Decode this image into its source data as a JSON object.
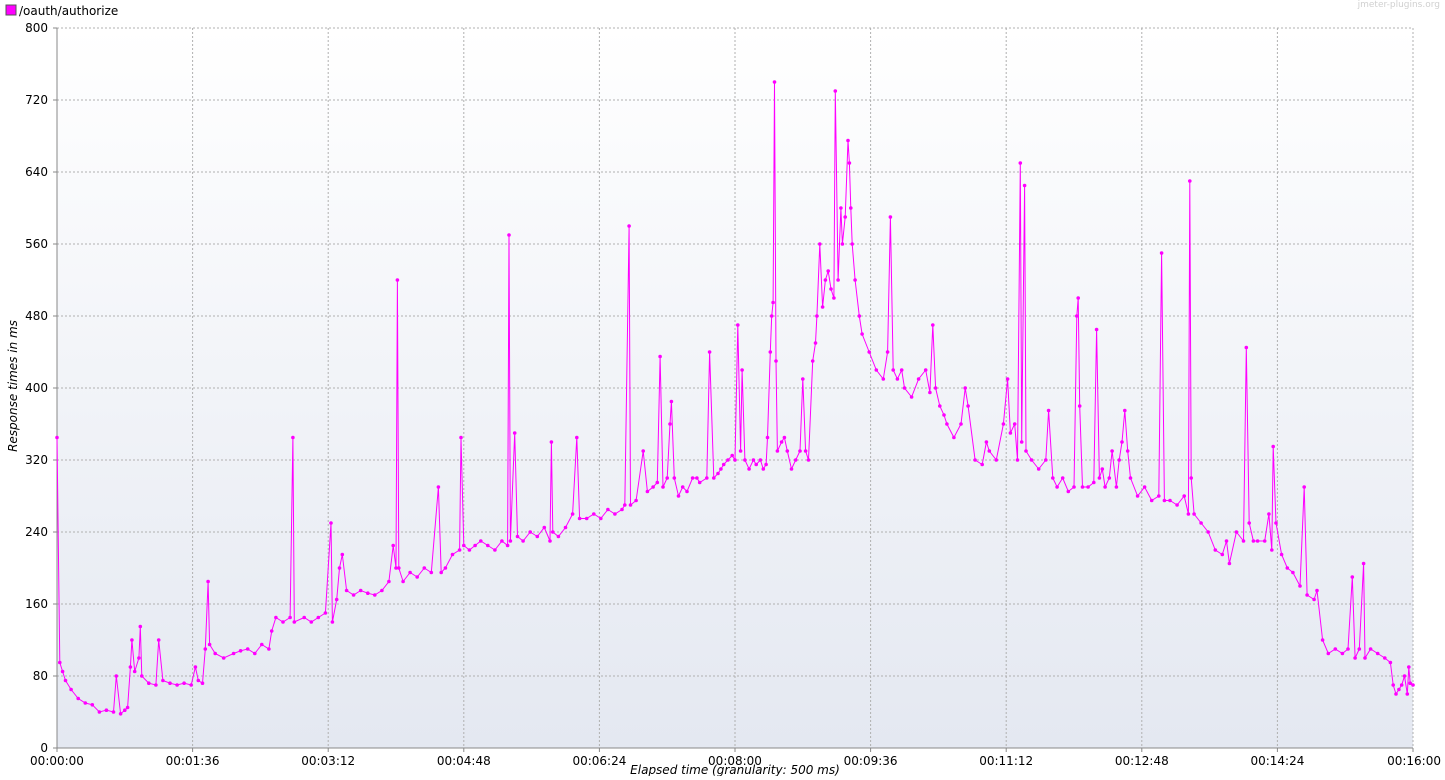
{
  "watermark": "jmeter-plugins.org",
  "chart_data": {
    "type": "line",
    "title": "",
    "xlabel": "Elapsed time (granularity: 500 ms)",
    "ylabel": "Response times in ms",
    "legend_placement": "top-left",
    "grid": true,
    "series_color": "#ff00ff",
    "xlim_seconds": [
      0,
      960
    ],
    "ylim": [
      0,
      800
    ],
    "x_ticks": [
      "00:00:00",
      "00:01:36",
      "00:03:12",
      "00:04:48",
      "00:06:24",
      "00:08:00",
      "00:09:36",
      "00:11:12",
      "00:12:48",
      "00:14:24",
      "00:16:00"
    ],
    "y_ticks": [
      0,
      80,
      160,
      240,
      320,
      400,
      480,
      560,
      640,
      720,
      800
    ],
    "series": [
      {
        "name": "/oauth/authorize",
        "x_unit": "elapsed seconds",
        "points": [
          [
            0,
            345
          ],
          [
            2,
            95
          ],
          [
            4,
            85
          ],
          [
            6,
            75
          ],
          [
            10,
            65
          ],
          [
            15,
            55
          ],
          [
            20,
            50
          ],
          [
            25,
            48
          ],
          [
            30,
            40
          ],
          [
            35,
            42
          ],
          [
            40,
            40
          ],
          [
            42,
            80
          ],
          [
            45,
            38
          ],
          [
            48,
            42
          ],
          [
            50,
            45
          ],
          [
            52,
            90
          ],
          [
            53,
            120
          ],
          [
            55,
            85
          ],
          [
            58,
            100
          ],
          [
            59,
            135
          ],
          [
            60,
            80
          ],
          [
            65,
            72
          ],
          [
            70,
            70
          ],
          [
            72,
            120
          ],
          [
            75,
            75
          ],
          [
            80,
            72
          ],
          [
            85,
            70
          ],
          [
            90,
            72
          ],
          [
            95,
            70
          ],
          [
            98,
            90
          ],
          [
            100,
            75
          ],
          [
            103,
            72
          ],
          [
            105,
            110
          ],
          [
            107,
            185
          ],
          [
            108,
            115
          ],
          [
            112,
            105
          ],
          [
            118,
            100
          ],
          [
            125,
            105
          ],
          [
            130,
            108
          ],
          [
            135,
            110
          ],
          [
            140,
            105
          ],
          [
            145,
            115
          ],
          [
            150,
            110
          ],
          [
            152,
            130
          ],
          [
            155,
            145
          ],
          [
            160,
            140
          ],
          [
            165,
            145
          ],
          [
            167,
            345
          ],
          [
            168,
            140
          ],
          [
            175,
            145
          ],
          [
            180,
            140
          ],
          [
            185,
            145
          ],
          [
            190,
            150
          ],
          [
            194,
            250
          ],
          [
            195,
            140
          ],
          [
            198,
            165
          ],
          [
            200,
            200
          ],
          [
            202,
            215
          ],
          [
            205,
            175
          ],
          [
            210,
            170
          ],
          [
            215,
            175
          ],
          [
            220,
            172
          ],
          [
            225,
            170
          ],
          [
            230,
            175
          ],
          [
            235,
            185
          ],
          [
            238,
            225
          ],
          [
            240,
            200
          ],
          [
            241,
            520
          ],
          [
            242,
            200
          ],
          [
            245,
            185
          ],
          [
            250,
            195
          ],
          [
            255,
            190
          ],
          [
            260,
            200
          ],
          [
            265,
            195
          ],
          [
            270,
            290
          ],
          [
            272,
            195
          ],
          [
            275,
            200
          ],
          [
            280,
            215
          ],
          [
            285,
            220
          ],
          [
            286,
            345
          ],
          [
            288,
            225
          ],
          [
            292,
            220
          ],
          [
            296,
            225
          ],
          [
            300,
            230
          ],
          [
            305,
            225
          ],
          [
            310,
            220
          ],
          [
            315,
            230
          ],
          [
            319,
            225
          ],
          [
            320,
            570
          ],
          [
            321,
            230
          ],
          [
            324,
            350
          ],
          [
            326,
            235
          ],
          [
            330,
            230
          ],
          [
            335,
            240
          ],
          [
            340,
            235
          ],
          [
            345,
            245
          ],
          [
            349,
            230
          ],
          [
            350,
            340
          ],
          [
            351,
            240
          ],
          [
            355,
            235
          ],
          [
            360,
            245
          ],
          [
            365,
            260
          ],
          [
            368,
            345
          ],
          [
            370,
            255
          ],
          [
            375,
            255
          ],
          [
            380,
            260
          ],
          [
            385,
            255
          ],
          [
            390,
            265
          ],
          [
            395,
            260
          ],
          [
            400,
            265
          ],
          [
            402,
            270
          ],
          [
            405,
            580
          ],
          [
            406,
            270
          ],
          [
            410,
            275
          ],
          [
            415,
            330
          ],
          [
            418,
            285
          ],
          [
            422,
            290
          ],
          [
            425,
            295
          ],
          [
            427,
            435
          ],
          [
            429,
            290
          ],
          [
            432,
            300
          ],
          [
            434,
            360
          ],
          [
            435,
            385
          ],
          [
            437,
            300
          ],
          [
            440,
            280
          ],
          [
            443,
            290
          ],
          [
            446,
            285
          ],
          [
            450,
            300
          ],
          [
            453,
            300
          ],
          [
            455,
            295
          ],
          [
            460,
            300
          ],
          [
            462,
            440
          ],
          [
            465,
            300
          ],
          [
            468,
            305
          ],
          [
            470,
            310
          ],
          [
            472,
            315
          ],
          [
            475,
            320
          ],
          [
            478,
            325
          ],
          [
            480,
            320
          ],
          [
            482,
            470
          ],
          [
            484,
            330
          ],
          [
            485,
            420
          ],
          [
            487,
            320
          ],
          [
            490,
            310
          ],
          [
            493,
            320
          ],
          [
            495,
            315
          ],
          [
            498,
            320
          ],
          [
            500,
            310
          ],
          [
            502,
            315
          ],
          [
            503,
            345
          ],
          [
            505,
            440
          ],
          [
            506,
            480
          ],
          [
            507,
            495
          ],
          [
            508,
            740
          ],
          [
            509,
            430
          ],
          [
            510,
            330
          ],
          [
            513,
            340
          ],
          [
            515,
            345
          ],
          [
            517,
            330
          ],
          [
            520,
            310
          ],
          [
            523,
            320
          ],
          [
            526,
            330
          ],
          [
            528,
            410
          ],
          [
            530,
            330
          ],
          [
            532,
            320
          ],
          [
            535,
            430
          ],
          [
            537,
            450
          ],
          [
            538,
            480
          ],
          [
            540,
            560
          ],
          [
            542,
            490
          ],
          [
            544,
            520
          ],
          [
            546,
            530
          ],
          [
            548,
            510
          ],
          [
            550,
            500
          ],
          [
            551,
            730
          ],
          [
            553,
            520
          ],
          [
            555,
            600
          ],
          [
            556,
            560
          ],
          [
            558,
            590
          ],
          [
            560,
            675
          ],
          [
            561,
            650
          ],
          [
            562,
            600
          ],
          [
            563,
            560
          ],
          [
            565,
            520
          ],
          [
            568,
            480
          ],
          [
            570,
            460
          ],
          [
            575,
            440
          ],
          [
            580,
            420
          ],
          [
            585,
            410
          ],
          [
            588,
            440
          ],
          [
            590,
            590
          ],
          [
            592,
            420
          ],
          [
            595,
            410
          ],
          [
            598,
            420
          ],
          [
            600,
            400
          ],
          [
            605,
            390
          ],
          [
            610,
            410
          ],
          [
            615,
            420
          ],
          [
            618,
            395
          ],
          [
            620,
            470
          ],
          [
            622,
            400
          ],
          [
            625,
            380
          ],
          [
            628,
            370
          ],
          [
            630,
            360
          ],
          [
            635,
            345
          ],
          [
            640,
            360
          ],
          [
            643,
            400
          ],
          [
            645,
            380
          ],
          [
            650,
            320
          ],
          [
            655,
            315
          ],
          [
            658,
            340
          ],
          [
            660,
            330
          ],
          [
            665,
            320
          ],
          [
            670,
            360
          ],
          [
            673,
            410
          ],
          [
            675,
            350
          ],
          [
            678,
            360
          ],
          [
            680,
            320
          ],
          [
            682,
            650
          ],
          [
            683,
            340
          ],
          [
            685,
            625
          ],
          [
            686,
            330
          ],
          [
            690,
            320
          ],
          [
            695,
            310
          ],
          [
            700,
            320
          ],
          [
            702,
            375
          ],
          [
            705,
            300
          ],
          [
            708,
            290
          ],
          [
            712,
            300
          ],
          [
            716,
            285
          ],
          [
            720,
            290
          ],
          [
            722,
            480
          ],
          [
            723,
            500
          ],
          [
            724,
            380
          ],
          [
            726,
            290
          ],
          [
            730,
            290
          ],
          [
            734,
            295
          ],
          [
            736,
            465
          ],
          [
            738,
            300
          ],
          [
            740,
            310
          ],
          [
            742,
            290
          ],
          [
            745,
            300
          ],
          [
            747,
            330
          ],
          [
            750,
            290
          ],
          [
            752,
            320
          ],
          [
            754,
            340
          ],
          [
            756,
            375
          ],
          [
            758,
            330
          ],
          [
            760,
            300
          ],
          [
            765,
            280
          ],
          [
            770,
            290
          ],
          [
            775,
            275
          ],
          [
            780,
            280
          ],
          [
            782,
            550
          ],
          [
            784,
            275
          ],
          [
            788,
            275
          ],
          [
            793,
            270
          ],
          [
            798,
            280
          ],
          [
            801,
            260
          ],
          [
            802,
            630
          ],
          [
            803,
            300
          ],
          [
            805,
            260
          ],
          [
            810,
            250
          ],
          [
            815,
            240
          ],
          [
            820,
            220
          ],
          [
            825,
            215
          ],
          [
            828,
            230
          ],
          [
            830,
            205
          ],
          [
            835,
            240
          ],
          [
            840,
            230
          ],
          [
            842,
            445
          ],
          [
            844,
            250
          ],
          [
            847,
            230
          ],
          [
            850,
            230
          ],
          [
            855,
            230
          ],
          [
            858,
            260
          ],
          [
            860,
            220
          ],
          [
            861,
            335
          ],
          [
            863,
            250
          ],
          [
            867,
            215
          ],
          [
            871,
            200
          ],
          [
            875,
            195
          ],
          [
            880,
            180
          ],
          [
            883,
            290
          ],
          [
            885,
            170
          ],
          [
            890,
            165
          ],
          [
            892,
            175
          ],
          [
            896,
            120
          ],
          [
            900,
            105
          ],
          [
            905,
            110
          ],
          [
            910,
            105
          ],
          [
            914,
            110
          ],
          [
            917,
            190
          ],
          [
            919,
            100
          ],
          [
            922,
            110
          ],
          [
            925,
            205
          ],
          [
            926,
            100
          ],
          [
            930,
            110
          ],
          [
            935,
            105
          ],
          [
            940,
            100
          ],
          [
            944,
            95
          ],
          [
            946,
            70
          ],
          [
            948,
            60
          ],
          [
            950,
            65
          ],
          [
            952,
            70
          ],
          [
            954,
            80
          ],
          [
            956,
            60
          ],
          [
            957,
            90
          ],
          [
            958,
            72
          ],
          [
            960,
            70
          ]
        ]
      }
    ]
  }
}
